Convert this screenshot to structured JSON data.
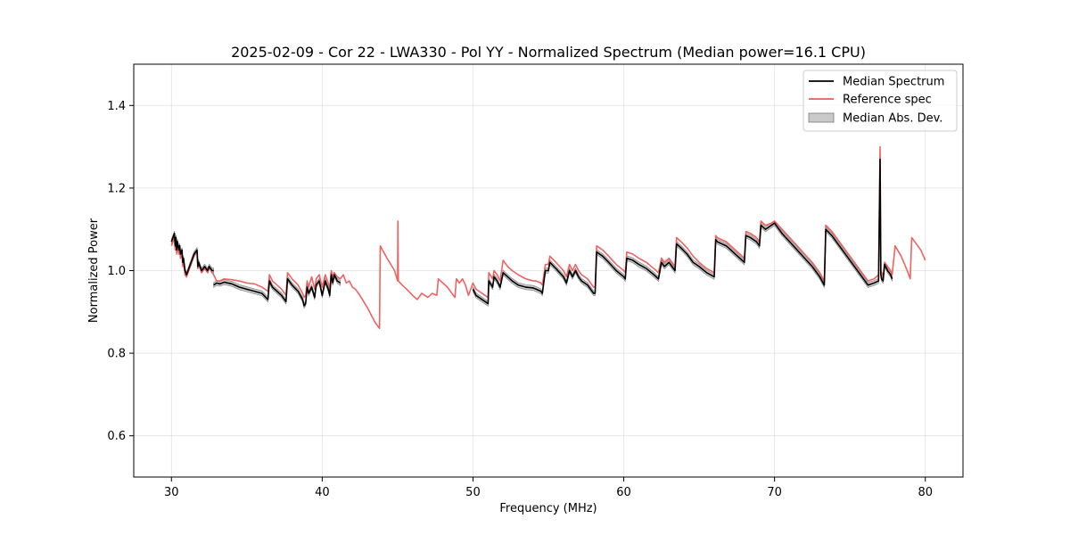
{
  "chart_data": {
    "type": "line",
    "title": "2025-02-09 - Cor 22 - LWA330 - Pol YY - Normalized Spectrum (Median power=16.1 CPU)",
    "xlabel": "Frequency (MHz)",
    "ylabel": "Normalized Power",
    "xlim": [
      27.5,
      82.5
    ],
    "ylim": [
      0.5,
      1.5
    ],
    "xticks": [
      30,
      40,
      50,
      60,
      70,
      80
    ],
    "yticks": [
      0.6,
      0.8,
      1.0,
      1.2,
      1.4
    ],
    "grid": true,
    "legend_position": "top-right",
    "legend": [
      "Median Spectrum",
      "Reference spec",
      "Median Abs. Dev."
    ],
    "colors": {
      "median": "#000000",
      "reference": "#f05a5a",
      "mad_fill": "#b4b4b4",
      "mad_edge": "#7a7a7a"
    },
    "series": [
      {
        "name": "Median Spectrum",
        "segments": [
          {
            "x": [
              30.0,
              30.1,
              30.2,
              30.25,
              30.3,
              30.35,
              30.4,
              30.5,
              30.55,
              30.6,
              30.7,
              30.75,
              30.8,
              30.9,
              31.0,
              31.1,
              31.3,
              31.5,
              31.7,
              31.75,
              31.8,
              32.0,
              32.2,
              32.4,
              32.5,
              32.7,
              32.8
            ],
            "y": [
              1.07,
              1.08,
              1.09,
              1.06,
              1.08,
              1.05,
              1.07,
              1.05,
              1.06,
              1.04,
              1.05,
              1.02,
              1.03,
              1.0,
              0.99,
              1.0,
              1.02,
              1.04,
              1.05,
              1.01,
              1.02,
              1.0,
              1.01,
              1.0,
              1.01,
              1.0,
              1.0
            ]
          },
          {
            "x": [
              32.8,
              33.0,
              33.2,
              33.5,
              34.0,
              34.5,
              35.0,
              35.5,
              36.0,
              36.4,
              36.5,
              36.7,
              37.0,
              37.3,
              37.6,
              37.7,
              38.0,
              38.4,
              38.7,
              38.8,
              38.9,
              39.0,
              39.1,
              39.3,
              39.5,
              39.6,
              39.8,
              40.0,
              40.2,
              40.4,
              40.5,
              40.6,
              40.7,
              40.8,
              41.0,
              41.2
            ],
            "y": [
              0.965,
              0.97,
              0.968,
              0.972,
              0.968,
              0.96,
              0.955,
              0.95,
              0.945,
              0.93,
              0.975,
              0.96,
              0.95,
              0.94,
              0.925,
              0.98,
              0.965,
              0.95,
              0.93,
              0.915,
              0.92,
              0.96,
              0.945,
              0.96,
              0.935,
              0.965,
              0.975,
              0.94,
              0.975,
              0.955,
              0.94,
              0.99,
              0.97,
              0.99,
              0.975,
              0.97
            ]
          },
          {
            "x": [
              50.0,
              50.2,
              50.4,
              50.6,
              50.8,
              51.0,
              51.05,
              51.3,
              51.4,
              51.6,
              51.8,
              52.0,
              52.3,
              52.6,
              53.0,
              53.5,
              54.0,
              54.2,
              54.5,
              54.6,
              54.8,
              55.0,
              55.1,
              55.5,
              56.0,
              56.2,
              56.4,
              56.6,
              56.8,
              57.0,
              57.2,
              57.6,
              58.0,
              58.1,
              58.2,
              58.6,
              59.0,
              59.5,
              60.0,
              60.1,
              60.2,
              60.6,
              61.0,
              61.5,
              62.0,
              62.3,
              62.5,
              62.7,
              63.0,
              63.4,
              63.5,
              63.8,
              64.2,
              64.6,
              65.0,
              65.5,
              66.0,
              66.1,
              66.2,
              66.8,
              67.4,
              68.0,
              68.1,
              68.4,
              68.8,
              69.0,
              69.1,
              69.4,
              69.8,
              70.0,
              70.5,
              71.0,
              71.5,
              72.0,
              72.5,
              73.0,
              73.3,
              73.4,
              73.8,
              74.2,
              74.6,
              75.0,
              75.4,
              75.8,
              76.2,
              76.6,
              76.9,
              77.0,
              77.05,
              77.1,
              77.2,
              77.3,
              77.5,
              77.7,
              77.8
            ],
            "y": [
              0.955,
              0.94,
              0.935,
              0.93,
              0.925,
              0.92,
              0.975,
              0.96,
              0.985,
              0.975,
              0.96,
              0.995,
              0.985,
              0.975,
              0.965,
              0.96,
              0.958,
              0.955,
              0.95,
              0.945,
              1.0,
              1.0,
              1.02,
              1.005,
              0.985,
              0.97,
              1.0,
              0.985,
              1.0,
              0.985,
              0.975,
              0.965,
              0.945,
              0.945,
              1.045,
              1.035,
              1.02,
              1.0,
              0.985,
              0.98,
              1.03,
              1.025,
              1.015,
              1.005,
              0.99,
              0.98,
              1.02,
              1.01,
              1.02,
              1.0,
              1.065,
              1.055,
              1.04,
              1.02,
              1.01,
              0.995,
              0.985,
              1.075,
              1.07,
              1.06,
              1.04,
              1.02,
              1.085,
              1.08,
              1.07,
              1.06,
              1.11,
              1.1,
              1.11,
              1.115,
              1.09,
              1.07,
              1.05,
              1.03,
              1.01,
              0.985,
              0.965,
              1.1,
              1.085,
              1.065,
              1.045,
              1.025,
              1.005,
              0.985,
              0.965,
              0.97,
              0.975,
              1.27,
              0.99,
              0.98,
              0.975,
              1.015,
              1.0,
              0.99,
              0.98
            ]
          }
        ]
      },
      {
        "name": "Reference spec",
        "segments": [
          {
            "x": [
              30.0,
              30.1,
              30.2,
              30.25,
              30.3,
              30.35,
              30.4,
              30.5,
              30.55,
              30.6,
              30.7,
              30.75,
              30.8,
              30.9,
              31.0,
              31.1,
              31.3,
              31.5,
              31.7,
              31.75,
              31.8,
              32.0,
              32.2,
              32.4,
              32.5,
              32.7,
              32.8,
              33.0,
              33.2,
              33.5,
              34.0,
              34.5,
              35.0,
              35.5,
              36.0,
              36.4,
              36.5,
              36.7,
              37.0,
              37.3,
              37.6,
              37.7,
              38.0,
              38.4,
              38.7,
              38.8,
              38.9,
              39.0,
              39.1,
              39.3,
              39.5,
              39.6,
              39.8,
              40.0,
              40.2,
              40.4,
              40.5,
              40.6,
              40.7,
              40.8,
              41.0,
              41.2,
              41.4,
              41.6,
              41.8,
              42.0,
              42.2,
              42.5,
              43.0,
              43.5,
              43.8,
              43.85,
              44.3,
              44.8,
              45.0,
              45.02,
              45.05,
              45.3,
              45.6,
              46.0,
              46.3,
              46.6,
              47.0,
              47.3,
              47.6,
              47.7,
              48.0,
              48.3,
              48.6,
              48.8,
              48.9,
              49.1,
              49.3,
              49.5,
              49.7,
              50.0,
              50.2,
              50.4,
              50.6,
              50.8,
              51.0,
              51.05,
              51.3,
              51.4,
              51.6,
              51.8,
              52.0,
              52.3,
              52.6,
              53.0,
              53.5,
              54.0,
              54.2,
              54.5,
              54.6,
              54.8,
              55.0,
              55.1,
              55.5,
              56.0,
              56.2,
              56.4,
              56.6,
              56.8,
              57.0,
              57.2,
              57.6,
              58.0,
              58.1,
              58.2,
              58.6,
              59.0,
              59.5,
              60.0,
              60.1,
              60.2,
              60.6,
              61.0,
              61.5,
              62.0,
              62.3,
              62.5,
              62.7,
              63.0,
              63.4,
              63.5,
              63.8,
              64.2,
              64.6,
              65.0,
              65.5,
              66.0,
              66.1,
              66.2,
              66.8,
              67.4,
              68.0,
              68.1,
              68.4,
              68.8,
              69.0,
              69.1,
              69.4,
              69.8,
              70.0,
              70.5,
              71.0,
              71.5,
              72.0,
              72.5,
              73.0,
              73.3,
              73.4,
              73.8,
              74.2,
              74.6,
              75.0,
              75.4,
              75.8,
              76.2,
              76.6,
              76.9,
              77.0,
              77.05,
              77.1,
              77.2,
              77.3,
              77.5,
              77.7,
              77.8,
              78.0,
              78.4,
              78.8,
              79.0,
              79.1,
              79.4,
              79.7,
              80.0
            ],
            "y": [
              1.06,
              1.07,
              1.08,
              1.05,
              1.07,
              1.04,
              1.06,
              1.04,
              1.05,
              1.03,
              1.04,
              1.01,
              1.02,
              0.99,
              0.985,
              0.995,
              1.015,
              1.035,
              1.045,
              1.005,
              1.015,
              0.995,
              1.005,
              0.995,
              1.01,
              0.995,
              0.99,
              0.975,
              0.975,
              0.98,
              0.978,
              0.975,
              0.97,
              0.968,
              0.96,
              0.95,
              0.99,
              0.975,
              0.965,
              0.955,
              0.94,
              0.995,
              0.98,
              0.965,
              0.945,
              0.935,
              0.94,
              0.975,
              0.96,
              0.985,
              0.955,
              0.98,
              0.99,
              0.96,
              0.99,
              0.97,
              0.955,
              1.0,
              0.985,
              0.995,
              0.985,
              0.98,
              0.99,
              0.97,
              0.975,
              0.96,
              0.955,
              0.94,
              0.91,
              0.875,
              0.86,
              1.06,
              1.03,
              1.0,
              0.975,
              1.12,
              0.975,
              0.965,
              0.955,
              0.94,
              0.93,
              0.945,
              0.935,
              0.945,
              0.94,
              0.98,
              0.97,
              0.96,
              0.945,
              0.935,
              0.98,
              0.97,
              0.98,
              0.965,
              0.94,
              0.97,
              0.955,
              0.95,
              0.945,
              0.94,
              0.935,
              0.995,
              0.98,
              1.0,
              0.99,
              0.975,
              1.025,
              1.01,
              1.0,
              0.99,
              0.98,
              0.975,
              0.975,
              0.97,
              0.965,
              1.015,
              1.015,
              1.035,
              1.02,
              1.0,
              0.985,
              1.015,
              1.0,
              1.015,
              1.0,
              0.99,
              0.98,
              0.96,
              0.96,
              1.06,
              1.05,
              1.035,
              1.015,
              1.0,
              0.995,
              1.045,
              1.04,
              1.03,
              1.02,
              1.005,
              0.995,
              1.03,
              1.02,
              1.03,
              1.01,
              1.08,
              1.07,
              1.055,
              1.035,
              1.02,
              1.005,
              0.995,
              1.085,
              1.08,
              1.07,
              1.05,
              1.03,
              1.095,
              1.09,
              1.08,
              1.07,
              1.12,
              1.11,
              1.115,
              1.12,
              1.1,
              1.08,
              1.06,
              1.04,
              1.02,
              0.995,
              0.975,
              1.11,
              1.095,
              1.075,
              1.055,
              1.035,
              1.015,
              0.995,
              0.975,
              0.98,
              0.99,
              1.3,
              1.0,
              0.995,
              0.985,
              1.02,
              1.01,
              1.0,
              0.99,
              1.06,
              1.035,
              1.0,
              0.98,
              1.08,
              1.065,
              1.05,
              1.025
            ]
          }
        ]
      },
      {
        "name": "Median Abs. Dev.",
        "band_half_width": 0.006,
        "note": "shaded band around Median Spectrum segments"
      }
    ]
  }
}
